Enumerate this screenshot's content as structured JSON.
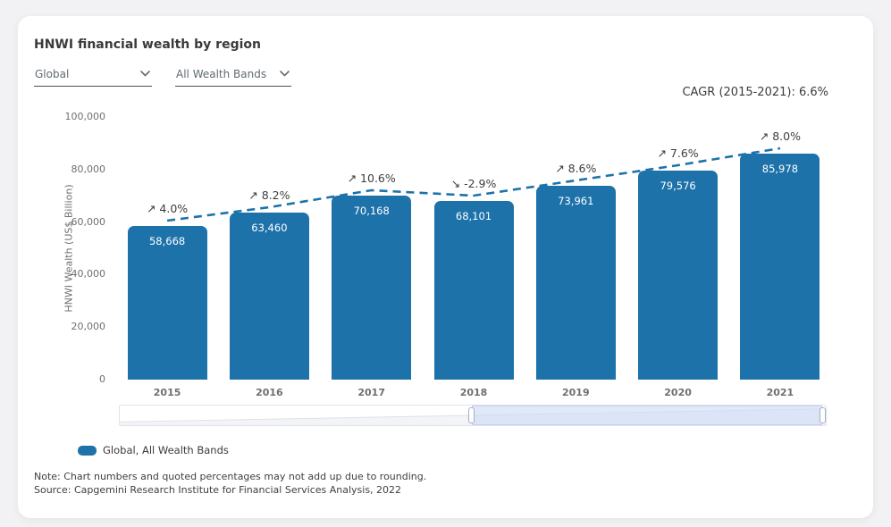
{
  "page": {
    "title": "HNWI financial wealth by region"
  },
  "filters": {
    "region": {
      "value": "Global"
    },
    "wealth_band": {
      "value": "All Wealth Bands"
    }
  },
  "cagr_label": "CAGR (2015-2021): 6.6%",
  "chart_data": {
    "type": "bar",
    "title": "HNWI financial wealth by region",
    "categories": [
      "2015",
      "2016",
      "2017",
      "2018",
      "2019",
      "2020",
      "2021"
    ],
    "values": [
      58668,
      63460,
      70168,
      68101,
      73961,
      79576,
      85978
    ],
    "value_labels": [
      "58,668",
      "63,460",
      "70,168",
      "68,101",
      "73,961",
      "79,576",
      "85,978"
    ],
    "growth": [
      {
        "arrow": "↗",
        "label": "4.0%"
      },
      {
        "arrow": "↗",
        "label": "8.2%"
      },
      {
        "arrow": "↗",
        "label": "10.6%"
      },
      {
        "arrow": "↘",
        "label": "-2.9%"
      },
      {
        "arrow": "↗",
        "label": "8.6%"
      },
      {
        "arrow": "↗",
        "label": "7.6%"
      },
      {
        "arrow": "↗",
        "label": "8.0%"
      }
    ],
    "xlabel": "",
    "ylabel": "HNWI Wealth (US$ Billion)",
    "ylim": [
      0,
      100000
    ],
    "yticks": [
      {
        "value": 0,
        "label": "0"
      },
      {
        "value": 20000,
        "label": "20,000"
      },
      {
        "value": 40000,
        "label": "40,000"
      },
      {
        "value": 60000,
        "label": "60,000"
      },
      {
        "value": 80000,
        "label": "80,000"
      },
      {
        "value": 100000,
        "label": "100,000"
      }
    ],
    "grid": false,
    "bar_color": "#1E72AA",
    "trend_line": {
      "style": "dashed",
      "color": "#1E72AA"
    },
    "legend_position": "bottom-left"
  },
  "range_selector": {
    "selected_fraction_start": 0.497,
    "selected_fraction_end": 0.993
  },
  "legend": {
    "label": "Global, All Wealth Bands",
    "swatch_color": "#1E72AA"
  },
  "notes": {
    "note": "Note: Chart numbers and quoted percentages may not add up due to rounding.",
    "source": "Source: Capgemini Research Institute for Financial Services Analysis, 2022"
  }
}
